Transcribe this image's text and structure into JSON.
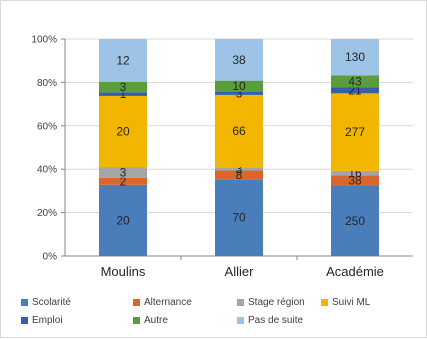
{
  "chart_data": {
    "type": "bar",
    "stacked": "percent",
    "categories": [
      "Moulins",
      "Allier",
      "Académie"
    ],
    "yticks": [
      "0%",
      "20%",
      "40%",
      "60%",
      "80%",
      "100%"
    ],
    "ylim": [
      0,
      100
    ],
    "grid": true,
    "legend_position": "bottom",
    "series": [
      {
        "name": "Scolarité",
        "color": "#4a7ebb",
        "values": [
          20,
          70,
          250
        ]
      },
      {
        "name": "Alternance",
        "color": "#d9672b",
        "values": [
          2,
          8,
          38
        ]
      },
      {
        "name": "Stage région",
        "color": "#a5a5a5",
        "values": [
          3,
          3,
          16
        ]
      },
      {
        "name": "Suivi ML",
        "color": "#f2b600",
        "values": [
          20,
          66,
          277
        ]
      },
      {
        "name": "Emploi",
        "color": "#355fa8",
        "values": [
          1,
          3,
          21
        ]
      },
      {
        "name": "Autre",
        "color": "#5a9e3c",
        "values": [
          3,
          10,
          43
        ]
      },
      {
        "name": "Pas de suite",
        "color": "#9dc3e6",
        "values": [
          12,
          38,
          130
        ]
      }
    ]
  }
}
